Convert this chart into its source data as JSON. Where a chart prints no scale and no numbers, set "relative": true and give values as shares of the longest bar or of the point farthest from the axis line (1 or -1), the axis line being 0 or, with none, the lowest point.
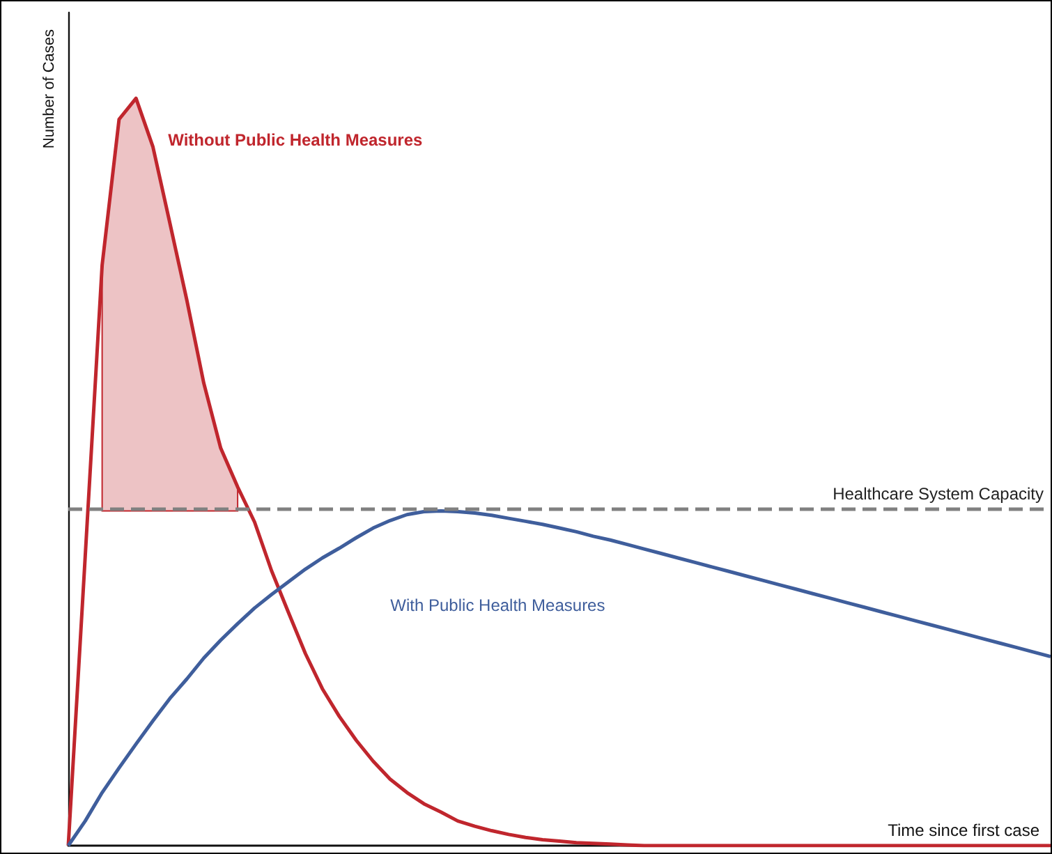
{
  "chart_data": {
    "type": "line",
    "relative": true,
    "xlabel": "Time since first case",
    "ylabel": "Number of Cases",
    "legend": false,
    "grid": false,
    "marker": "none",
    "categories": [
      null,
      null,
      null,
      null,
      null,
      null,
      null,
      null,
      null,
      null,
      null,
      null,
      null,
      null,
      null,
      null,
      null,
      null,
      null,
      null,
      null,
      null,
      null,
      null,
      null,
      null,
      null,
      null,
      null,
      null,
      null,
      null,
      null,
      null,
      null,
      null,
      null,
      null,
      null,
      null,
      null,
      null,
      null,
      null,
      null,
      null,
      null,
      null,
      null,
      null,
      null,
      null,
      null,
      null,
      null,
      null,
      null,
      null,
      null
    ],
    "series": [
      {
        "name": "Without Public Health Measures",
        "color": "#c0262d",
        "values": [
          0,
          0.387,
          0.777,
          0.972,
          1,
          0.935,
          0.833,
          0.73,
          0.619,
          0.532,
          0.48,
          0.433,
          0.368,
          0.312,
          0.257,
          0.21,
          0.173,
          0.141,
          0.113,
          0.089,
          0.071,
          0.056,
          0.045,
          0.033,
          0.026,
          0.02,
          0.015,
          0.011,
          0.008,
          0.006,
          0.004,
          0.003,
          0.002,
          0.001,
          0,
          0,
          0,
          0,
          0,
          0,
          0,
          0,
          0,
          0,
          0,
          0,
          0,
          0,
          0,
          0,
          0,
          0,
          0,
          0,
          0,
          0,
          0,
          0,
          0
        ],
        "lower": [
          null,
          null,
          0.448,
          0.448,
          0.448,
          0.448,
          0.448,
          0.448,
          0.448,
          0.448,
          0.448,
          null,
          null,
          null,
          null,
          null,
          null,
          null,
          null,
          null,
          null,
          null,
          null,
          null,
          null,
          null,
          null,
          null,
          null,
          null,
          null,
          null,
          null,
          null,
          null,
          null,
          null,
          null,
          null,
          null,
          null,
          null,
          null,
          null,
          null,
          null,
          null,
          null,
          null,
          null,
          null,
          null,
          null,
          null,
          null,
          null,
          null,
          null,
          null
        ],
        "upper": [
          null,
          null,
          0.777,
          0.972,
          1,
          0.935,
          0.833,
          0.73,
          0.619,
          0.532,
          0.48,
          null,
          null,
          null,
          null,
          null,
          null,
          null,
          null,
          null,
          null,
          null,
          null,
          null,
          null,
          null,
          null,
          null,
          null,
          null,
          null,
          null,
          null,
          null,
          null,
          null,
          null,
          null,
          null,
          null,
          null,
          null,
          null,
          null,
          null,
          null,
          null,
          null,
          null,
          null,
          null,
          null,
          null,
          null,
          null,
          null,
          null,
          null,
          null
        ]
      },
      {
        "name": "With Public Health Measures",
        "color": "#3f5e9c",
        "values": [
          0,
          0.033,
          0.071,
          0.104,
          0.136,
          0.167,
          0.197,
          0.223,
          0.251,
          0.275,
          0.297,
          0.318,
          0.336,
          0.353,
          0.37,
          0.385,
          0.398,
          0.412,
          0.425,
          0.435,
          0.443,
          0.447,
          0.448,
          0.447,
          0.445,
          0.442,
          0.438,
          0.434,
          0.43,
          0.425,
          0.42,
          0.414,
          0.409,
          0.403,
          0.397,
          0.391,
          0.385,
          0.379,
          0.373,
          0.367,
          0.361,
          0.355,
          0.349,
          0.343,
          0.337,
          0.331,
          0.325,
          0.319,
          0.313,
          0.307,
          0.301,
          0.295,
          0.289,
          0.283,
          0.277,
          0.271,
          0.265,
          0.259,
          0.253
        ]
      }
    ],
    "ref_lines": [
      {
        "axis": "y",
        "value": 0.448,
        "label": "Healthcare System Capacity",
        "color": "#808080",
        "line_style": "dashed"
      }
    ]
  }
}
